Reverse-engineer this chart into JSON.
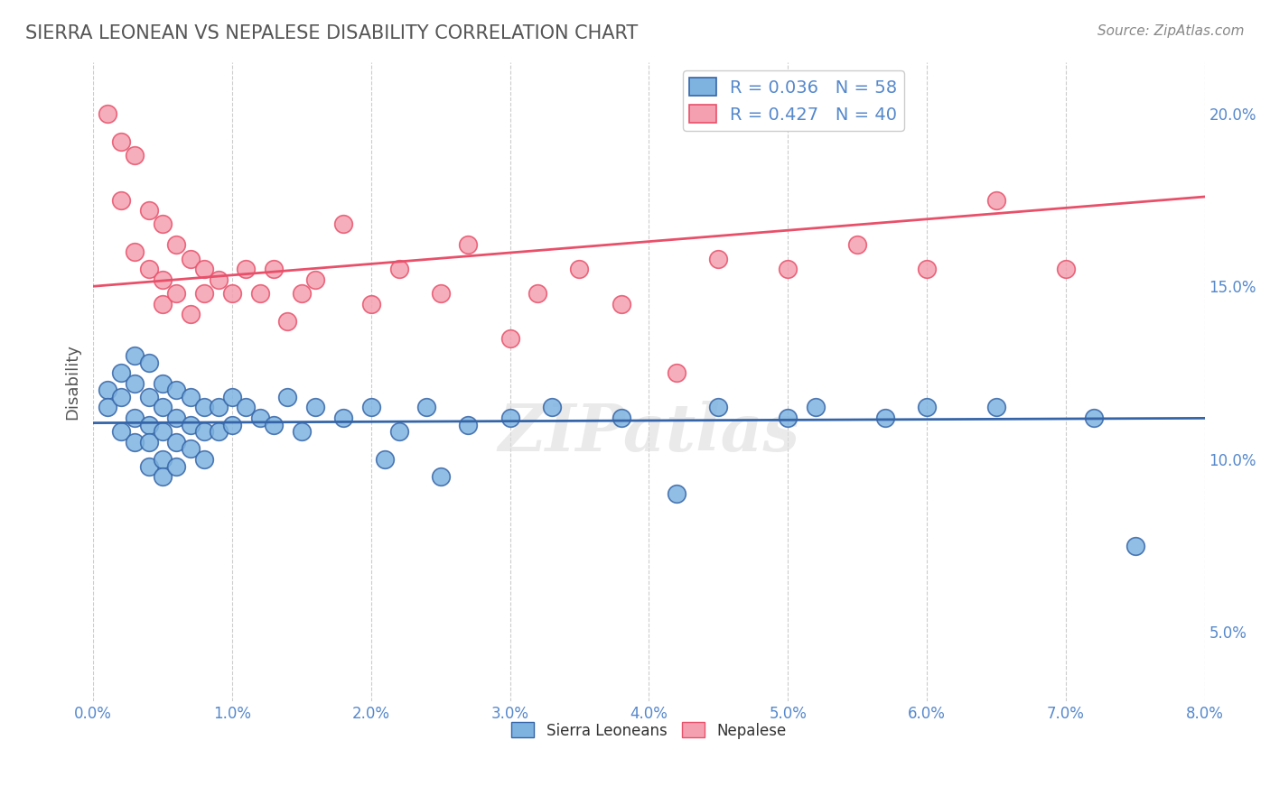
{
  "title": "SIERRA LEONEAN VS NEPALESE DISABILITY CORRELATION CHART",
  "source": "Source: ZipAtlas.com",
  "xlabel_bottom": "",
  "ylabel": "Disability",
  "xlim": [
    0.0,
    0.08
  ],
  "ylim": [
    0.03,
    0.215
  ],
  "xticks": [
    0.0,
    0.01,
    0.02,
    0.03,
    0.04,
    0.05,
    0.06,
    0.07,
    0.08
  ],
  "yticks": [
    0.05,
    0.1,
    0.15,
    0.2
  ],
  "ytick_labels": [
    "5.0%",
    "10.0%",
    "15.0%",
    "20.0%"
  ],
  "xtick_labels": [
    "0.0%",
    "1.0%",
    "2.0%",
    "3.0%",
    "4.0%",
    "5.0%",
    "6.0%",
    "7.0%",
    "8.0%"
  ],
  "sierra_color": "#7EB3E0",
  "nepalese_color": "#F4A0B0",
  "sierra_line_color": "#3565A8",
  "nepalese_line_color": "#E8506A",
  "legend_sierra_R": "R = 0.036",
  "legend_sierra_N": "N = 58",
  "legend_nepalese_R": "R = 0.427",
  "legend_nepalese_N": "N = 40",
  "background_color": "#FFFFFF",
  "grid_color": "#CCCCCC",
  "title_color": "#555555",
  "axis_label_color": "#555555",
  "tick_color": "#5588CC",
  "watermark": "ZIPatlas",
  "sierra_x": [
    0.001,
    0.001,
    0.002,
    0.002,
    0.002,
    0.003,
    0.003,
    0.003,
    0.003,
    0.004,
    0.004,
    0.004,
    0.004,
    0.004,
    0.005,
    0.005,
    0.005,
    0.005,
    0.005,
    0.006,
    0.006,
    0.006,
    0.006,
    0.007,
    0.007,
    0.007,
    0.008,
    0.008,
    0.008,
    0.009,
    0.009,
    0.01,
    0.01,
    0.011,
    0.012,
    0.013,
    0.014,
    0.015,
    0.016,
    0.018,
    0.02,
    0.021,
    0.022,
    0.024,
    0.025,
    0.027,
    0.03,
    0.033,
    0.038,
    0.042,
    0.045,
    0.05,
    0.052,
    0.057,
    0.06,
    0.065,
    0.072,
    0.075
  ],
  "sierra_y": [
    0.12,
    0.115,
    0.125,
    0.118,
    0.108,
    0.13,
    0.122,
    0.112,
    0.105,
    0.128,
    0.118,
    0.11,
    0.105,
    0.098,
    0.122,
    0.115,
    0.108,
    0.1,
    0.095,
    0.12,
    0.112,
    0.105,
    0.098,
    0.118,
    0.11,
    0.103,
    0.115,
    0.108,
    0.1,
    0.115,
    0.108,
    0.118,
    0.11,
    0.115,
    0.112,
    0.11,
    0.118,
    0.108,
    0.115,
    0.112,
    0.115,
    0.1,
    0.108,
    0.115,
    0.095,
    0.11,
    0.112,
    0.115,
    0.112,
    0.09,
    0.115,
    0.112,
    0.115,
    0.112,
    0.115,
    0.115,
    0.112,
    0.075
  ],
  "nepalese_x": [
    0.001,
    0.002,
    0.002,
    0.003,
    0.003,
    0.004,
    0.004,
    0.005,
    0.005,
    0.005,
    0.006,
    0.006,
    0.007,
    0.007,
    0.008,
    0.008,
    0.009,
    0.01,
    0.011,
    0.012,
    0.013,
    0.014,
    0.015,
    0.016,
    0.018,
    0.02,
    0.022,
    0.025,
    0.027,
    0.03,
    0.032,
    0.035,
    0.038,
    0.042,
    0.045,
    0.05,
    0.055,
    0.06,
    0.065,
    0.07
  ],
  "nepalese_y": [
    0.2,
    0.192,
    0.175,
    0.188,
    0.16,
    0.172,
    0.155,
    0.168,
    0.152,
    0.145,
    0.162,
    0.148,
    0.158,
    0.142,
    0.155,
    0.148,
    0.152,
    0.148,
    0.155,
    0.148,
    0.155,
    0.14,
    0.148,
    0.152,
    0.168,
    0.145,
    0.155,
    0.148,
    0.162,
    0.135,
    0.148,
    0.155,
    0.145,
    0.125,
    0.158,
    0.155,
    0.162,
    0.155,
    0.175,
    0.155
  ]
}
